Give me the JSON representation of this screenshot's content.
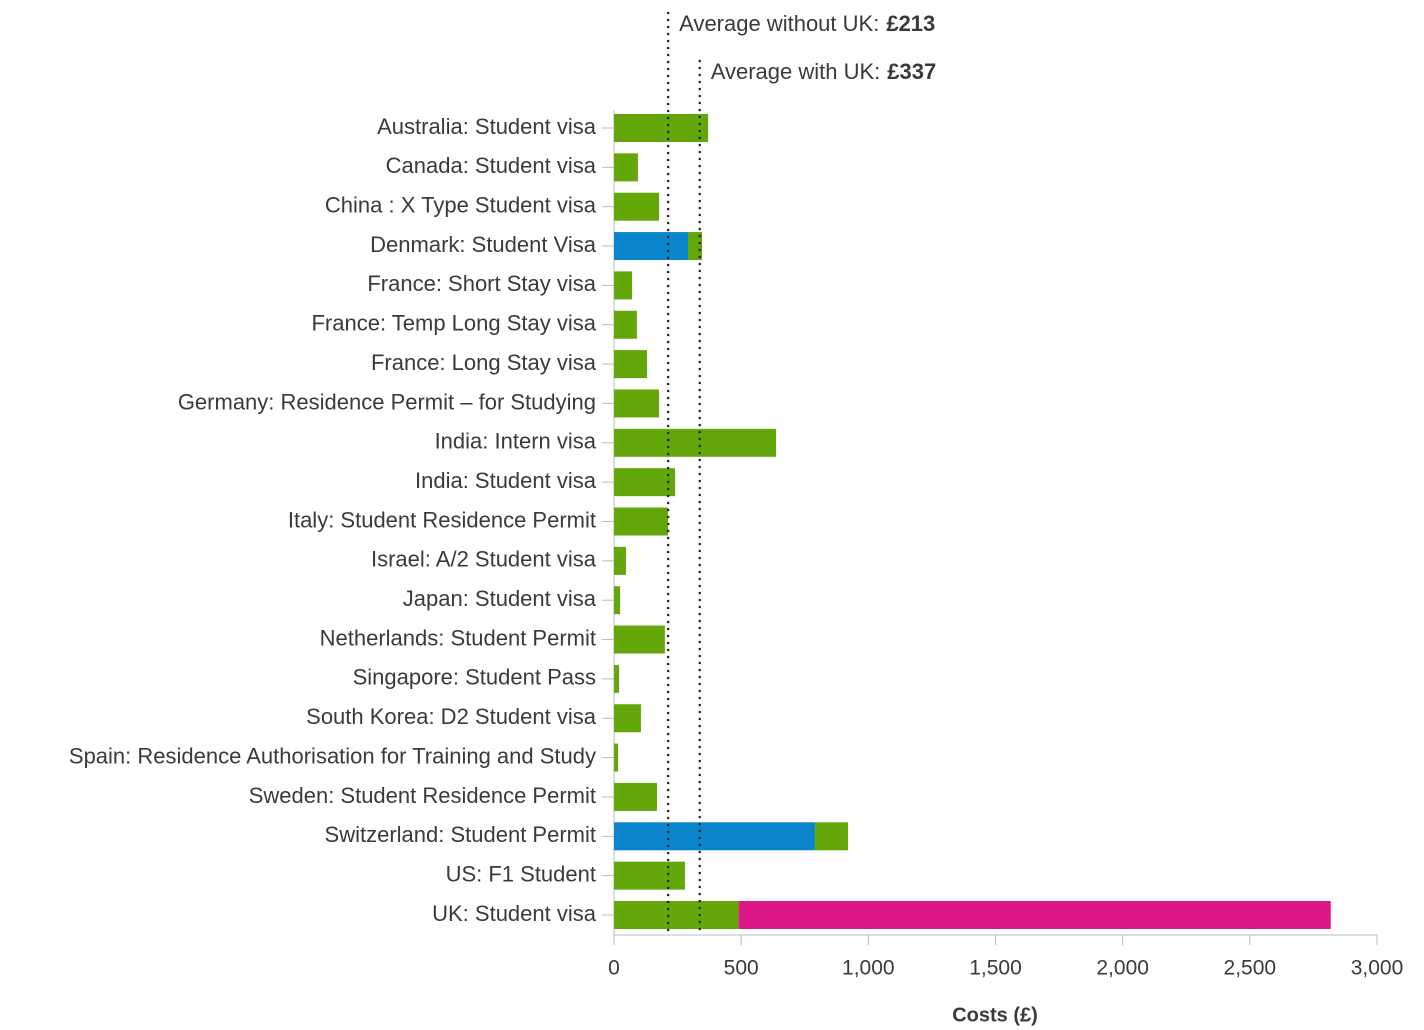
{
  "chart_data": {
    "type": "bar",
    "orientation": "horizontal",
    "stacked": true,
    "categories": [
      "Australia: Student visa",
      "Canada: Student visa",
      "China : X Type Student visa",
      "Denmark: Student Visa",
      "France: Short Stay visa",
      "France: Temp Long Stay visa",
      "France: Long Stay visa",
      "Germany: Residence Permit – for Studying",
      "India: Intern visa",
      "India: Student visa",
      "Italy: Student Residence Permit",
      "Israel: A/2 Student visa",
      "Japan: Student visa",
      "Netherlands: Student Permit",
      "Singapore: Student Pass",
      "South Korea: D2 Student visa",
      "Spain: Residence Authorisation for Training and Study",
      "Sweden: Student Residence Permit",
      "Switzerland: Student Permit",
      "US: F1 Student",
      "UK: Student visa"
    ],
    "series": [
      {
        "color": "#0a85cc",
        "values": [
          0,
          0,
          0,
          291,
          0,
          0,
          0,
          0,
          0,
          0,
          0,
          0,
          0,
          0,
          0,
          0,
          0,
          0,
          790,
          0,
          0
        ]
      },
      {
        "color": "#64a70b",
        "values": [
          370,
          94,
          177,
          55,
          71,
          90,
          130,
          177,
          637,
          240,
          212,
          47,
          24,
          200,
          20,
          106,
          16,
          169,
          130,
          279,
          490
        ]
      },
      {
        "color": "#dc1886",
        "values": [
          0,
          0,
          0,
          0,
          0,
          0,
          0,
          0,
          0,
          0,
          0,
          0,
          0,
          0,
          0,
          0,
          0,
          0,
          0,
          0,
          2328
        ]
      }
    ],
    "xlim": [
      0,
      3000
    ],
    "xticks": [
      0,
      500,
      {
        "value": 1000,
        "label": "1,000"
      },
      {
        "value": 1500,
        "label": "1,500"
      },
      {
        "value": 2000,
        "label": "2,000"
      },
      {
        "value": 2500,
        "label": "2,500"
      },
      {
        "value": 3000,
        "label": "3,000"
      }
    ],
    "x_label": "Costs (£)",
    "annotations": [
      {
        "text": "Average without UK:",
        "value": 213,
        "value_label": "£213"
      },
      {
        "text": "Average with UK:",
        "value": 337,
        "value_label": "£337"
      }
    ]
  }
}
